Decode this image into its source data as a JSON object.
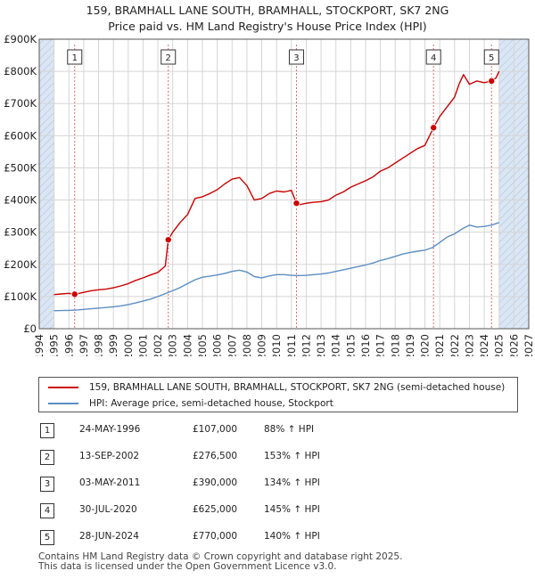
{
  "title": "159, BRAMHALL LANE SOUTH, BRAMHALL, STOCKPORT, SK7 2NG",
  "subtitle": "Price paid vs. HM Land Registry's House Price Index (HPI)",
  "colors": {
    "property_line": "#cc0000",
    "hpi_line": "#5b8ec4",
    "shade": "#dbe6f4",
    "grid": "#d5d5d5",
    "marker_line": "#e06a6a"
  },
  "chart_data": {
    "type": "line",
    "ylabel": "",
    "xlabel": "",
    "ylim": [
      0,
      900000
    ],
    "xlim": [
      1994,
      2027
    ],
    "yticks": [
      0,
      100000,
      200000,
      300000,
      400000,
      500000,
      600000,
      700000,
      800000,
      900000
    ],
    "ytick_labels": [
      "£0",
      "£100K",
      "£200K",
      "£300K",
      "£400K",
      "£500K",
      "£600K",
      "£700K",
      "£800K",
      "£900K"
    ],
    "xticks": [
      1994,
      1995,
      1996,
      1997,
      1998,
      1999,
      2000,
      2001,
      2002,
      2003,
      2004,
      2005,
      2006,
      2007,
      2008,
      2009,
      2010,
      2011,
      2012,
      2013,
      2014,
      2015,
      2016,
      2017,
      2018,
      2019,
      2020,
      2021,
      2022,
      2023,
      2024,
      2025,
      2026,
      2027
    ],
    "xtick_labels": [
      "1994",
      "1995",
      "1996",
      "1997",
      "1998",
      "1999",
      "2000",
      "2001",
      "2002",
      "2003",
      "2004",
      "2005",
      "2006",
      "2007",
      "2008",
      "2009",
      "2010",
      "2011",
      "2012",
      "2013",
      "2014",
      "2015",
      "2016",
      "2017",
      "2018",
      "2019",
      "2020",
      "2021",
      "2022",
      "2023",
      "2024",
      "2025",
      "2026",
      "2027"
    ],
    "shaded_ranges": [
      [
        1994,
        1995.0
      ],
      [
        2025.0,
        2027
      ]
    ],
    "hatched_ranges": [
      [
        1994,
        1995.0
      ],
      [
        2025.0,
        2027
      ]
    ],
    "series": [
      {
        "name": "159, BRAMHALL LANE SOUTH, BRAMHALL, STOCKPORT, SK7 2NG (semi-detached house)",
        "color": "#cc0000",
        "x": [
          1995.0,
          1995.5,
          1996.0,
          1996.39,
          1997.0,
          1997.5,
          1998.0,
          1998.5,
          1999.0,
          1999.5,
          2000.0,
          2000.5,
          2001.0,
          2001.5,
          2002.0,
          2002.5,
          2002.7,
          2003.0,
          2003.5,
          2004.0,
          2004.5,
          2005.0,
          2005.5,
          2006.0,
          2006.5,
          2007.0,
          2007.5,
          2008.0,
          2008.5,
          2009.0,
          2009.5,
          2010.0,
          2010.5,
          2011.0,
          2011.34,
          2011.5,
          2012.0,
          2012.5,
          2013.0,
          2013.5,
          2014.0,
          2014.5,
          2015.0,
          2015.5,
          2016.0,
          2016.5,
          2017.0,
          2017.5,
          2018.0,
          2018.5,
          2019.0,
          2019.5,
          2020.0,
          2020.58,
          2021.0,
          2021.5,
          2022.0,
          2022.3,
          2022.6,
          2023.0,
          2023.5,
          2024.0,
          2024.49,
          2024.8,
          2025.0
        ],
        "y": [
          106000,
          108000,
          110000,
          107000,
          113000,
          118000,
          121000,
          123000,
          127000,
          133000,
          140000,
          150000,
          158000,
          167000,
          175000,
          195000,
          276500,
          300000,
          330000,
          355000,
          405000,
          410000,
          420000,
          432000,
          450000,
          465000,
          470000,
          445000,
          400000,
          405000,
          420000,
          428000,
          425000,
          430000,
          390000,
          385000,
          390000,
          393000,
          395000,
          400000,
          415000,
          425000,
          440000,
          450000,
          460000,
          472000,
          490000,
          500000,
          515000,
          530000,
          545000,
          560000,
          570000,
          625000,
          660000,
          690000,
          720000,
          760000,
          790000,
          760000,
          770000,
          765000,
          770000,
          780000,
          800000
        ]
      },
      {
        "name": "HPI: Average price, semi-detached house, Stockport",
        "color": "#5b8ec4",
        "x": [
          1995.0,
          1995.5,
          1996.0,
          1996.5,
          1997.0,
          1997.5,
          1998.0,
          1998.5,
          1999.0,
          1999.5,
          2000.0,
          2000.5,
          2001.0,
          2001.5,
          2002.0,
          2002.5,
          2003.0,
          2003.5,
          2004.0,
          2004.5,
          2005.0,
          2005.5,
          2006.0,
          2006.5,
          2007.0,
          2007.5,
          2008.0,
          2008.5,
          2009.0,
          2009.5,
          2010.0,
          2010.5,
          2011.0,
          2011.5,
          2012.0,
          2012.5,
          2013.0,
          2013.5,
          2014.0,
          2014.5,
          2015.0,
          2015.5,
          2016.0,
          2016.5,
          2017.0,
          2017.5,
          2018.0,
          2018.5,
          2019.0,
          2019.5,
          2020.0,
          2020.5,
          2021.0,
          2021.5,
          2022.0,
          2022.5,
          2023.0,
          2023.5,
          2024.0,
          2024.5,
          2025.0
        ],
        "y": [
          56000,
          56500,
          57000,
          58000,
          60000,
          62000,
          64000,
          66000,
          68000,
          71000,
          75000,
          80000,
          86000,
          92000,
          100000,
          109000,
          118000,
          128000,
          140000,
          152000,
          160000,
          163000,
          167000,
          172000,
          178000,
          182000,
          176000,
          162000,
          158000,
          164000,
          168000,
          168000,
          166000,
          165000,
          166000,
          168000,
          170000,
          173000,
          178000,
          183000,
          188000,
          193000,
          198000,
          204000,
          212000,
          218000,
          225000,
          232000,
          237000,
          241000,
          244000,
          252000,
          268000,
          285000,
          295000,
          310000,
          322000,
          316000,
          318000,
          322000,
          330000
        ]
      }
    ],
    "sales": [
      {
        "label": "1",
        "x": 1996.39,
        "price": 107000
      },
      {
        "label": "2",
        "x": 2002.7,
        "price": 276500
      },
      {
        "label": "3",
        "x": 2011.34,
        "price": 390000
      },
      {
        "label": "4",
        "x": 2020.58,
        "price": 625000
      },
      {
        "label": "5",
        "x": 2024.49,
        "price": 770000
      }
    ]
  },
  "legend": {
    "property_label": "159, BRAMHALL LANE SOUTH, BRAMHALL, STOCKPORT, SK7 2NG (semi-detached house)",
    "hpi_label": "HPI: Average price, semi-detached house, Stockport"
  },
  "sales_table": [
    {
      "num": "1",
      "date": "24-MAY-1996",
      "price": "£107,000",
      "pct": "88% ↑ HPI"
    },
    {
      "num": "2",
      "date": "13-SEP-2002",
      "price": "£276,500",
      "pct": "153% ↑ HPI"
    },
    {
      "num": "3",
      "date": "03-MAY-2011",
      "price": "£390,000",
      "pct": "134% ↑ HPI"
    },
    {
      "num": "4",
      "date": "30-JUL-2020",
      "price": "£625,000",
      "pct": "145% ↑ HPI"
    },
    {
      "num": "5",
      "date": "28-JUN-2024",
      "price": "£770,000",
      "pct": "140% ↑ HPI"
    }
  ],
  "footer": {
    "line1": "Contains HM Land Registry data © Crown copyright and database right 2025.",
    "line2": "This data is licensed under the Open Government Licence v3.0."
  }
}
